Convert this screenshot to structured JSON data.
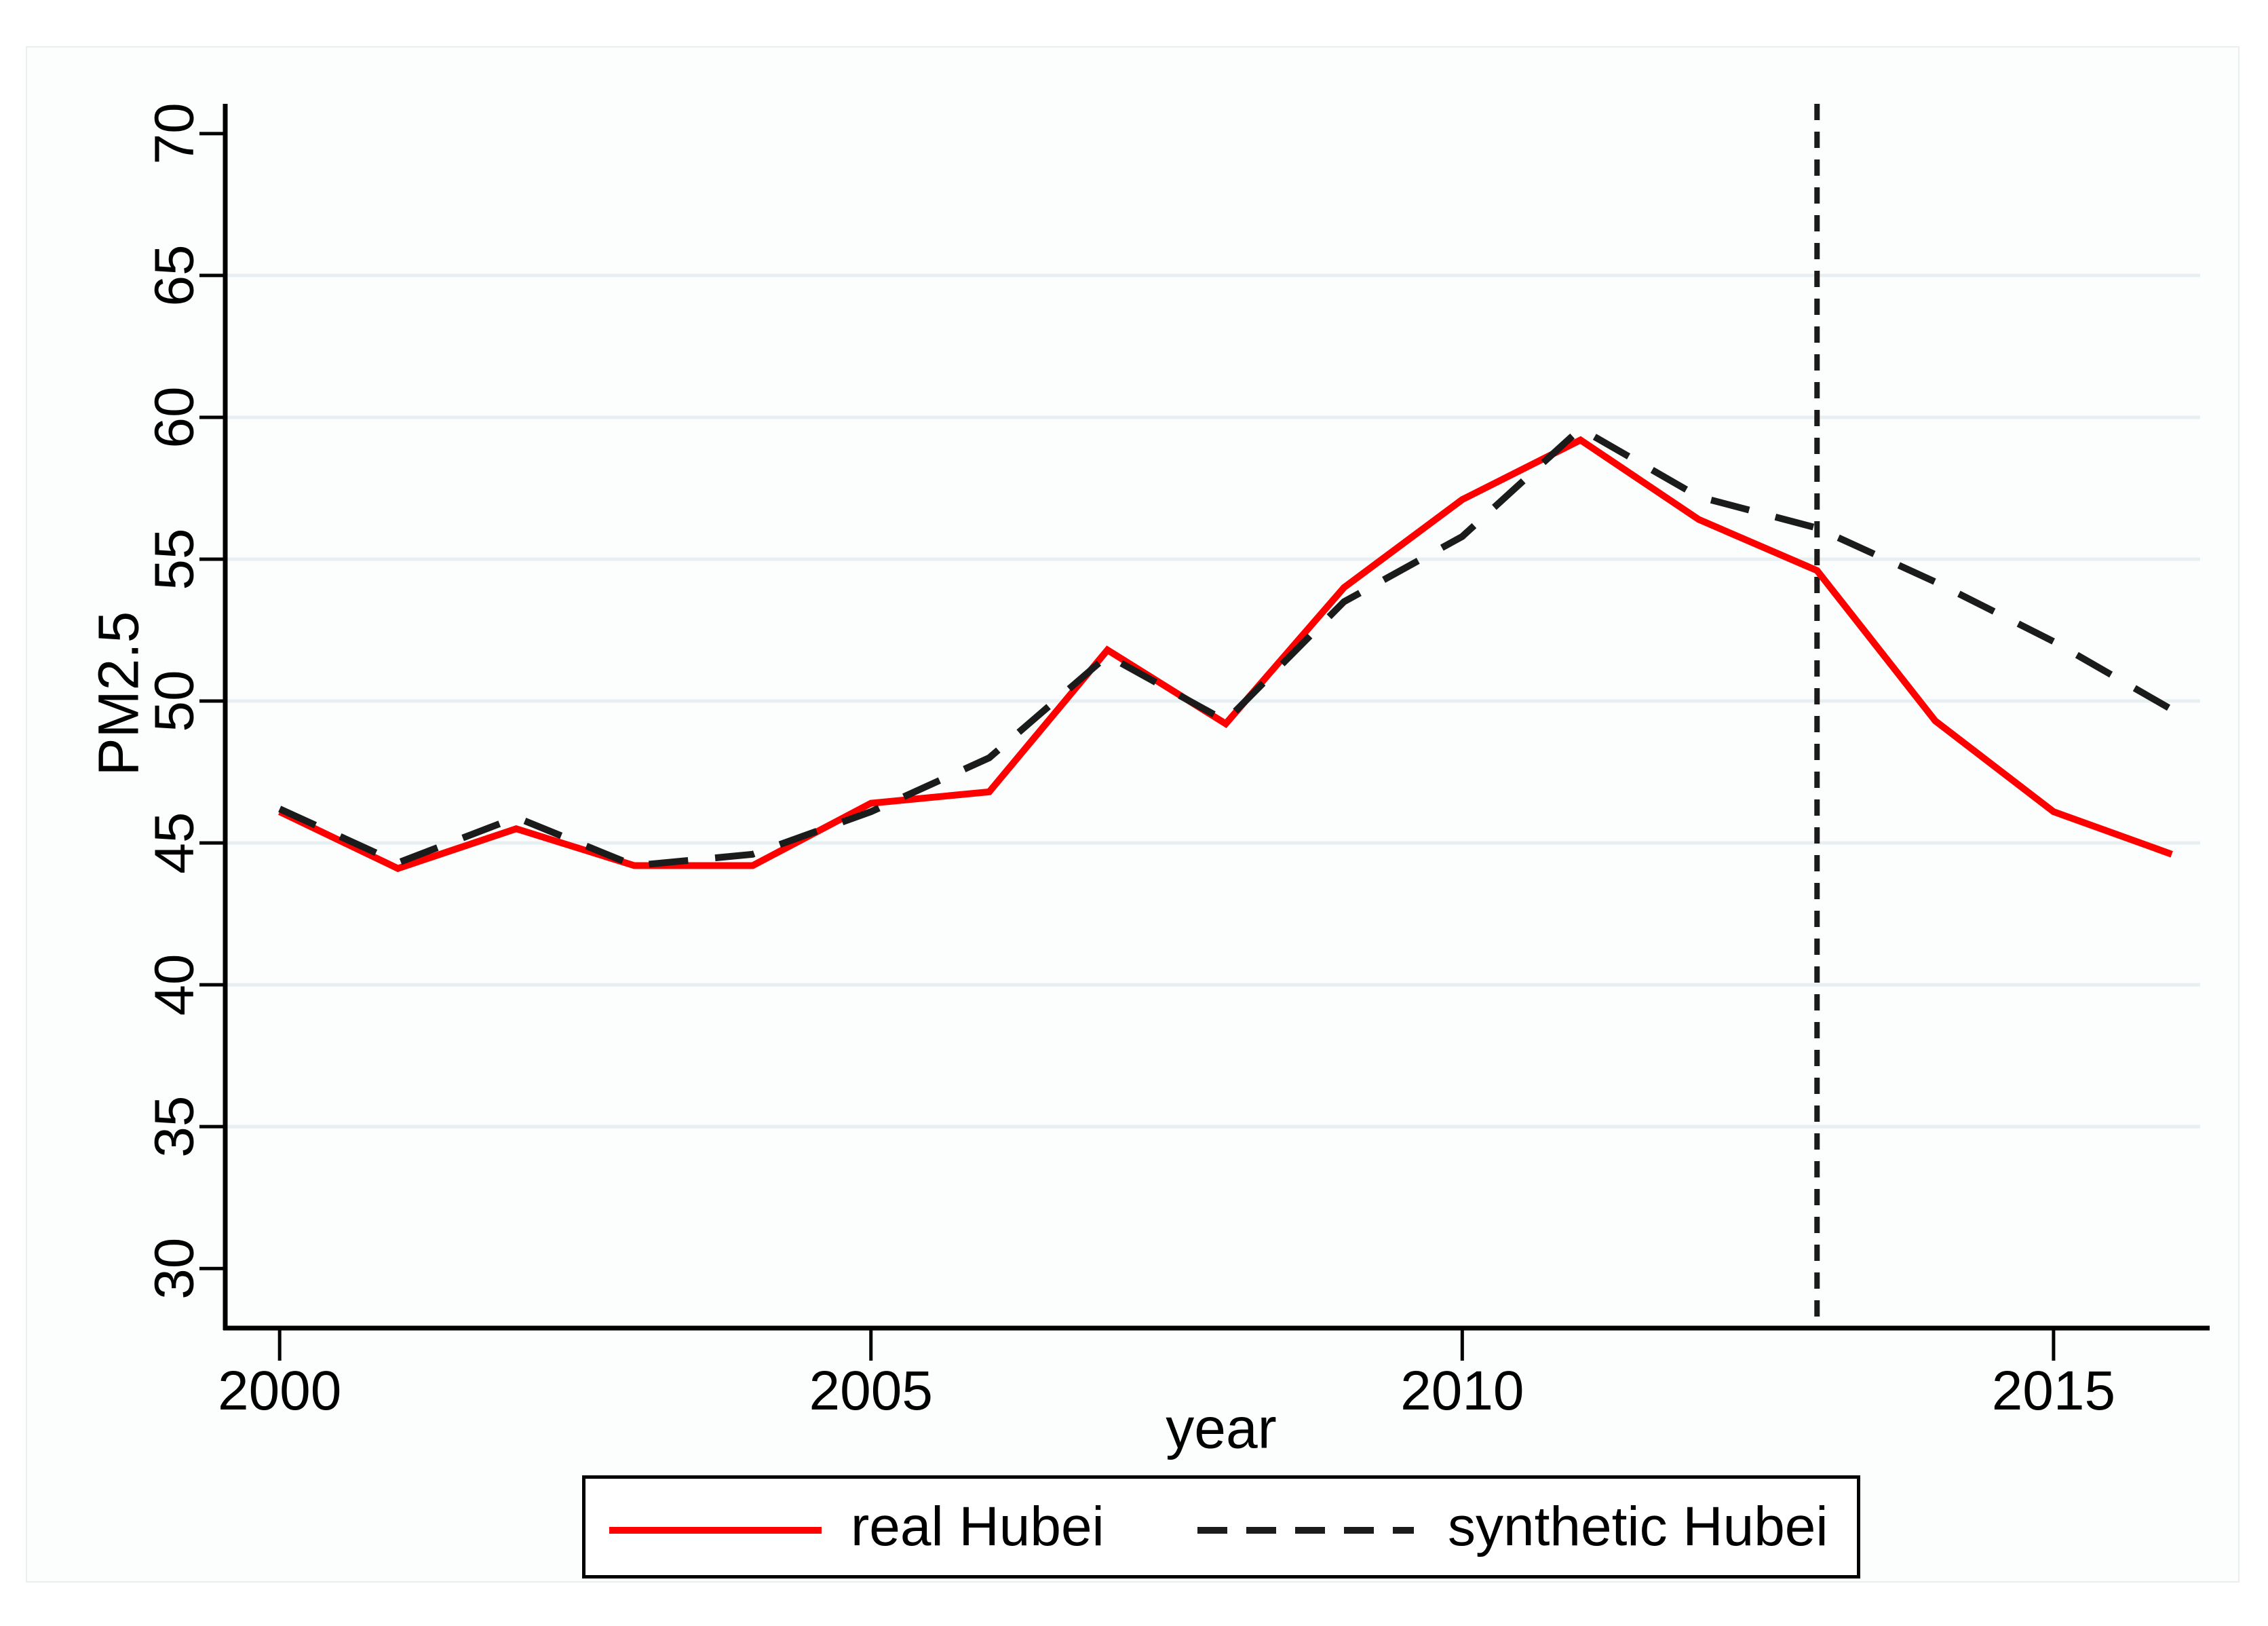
{
  "chart_data": {
    "type": "line",
    "title": "",
    "xlabel": "year",
    "ylabel": "PM2.5",
    "x": [
      2000,
      2001,
      2002,
      2003,
      2004,
      2005,
      2006,
      2007,
      2008,
      2009,
      2010,
      2011,
      2012,
      2013,
      2014,
      2015,
      2016
    ],
    "series": [
      {
        "name": "real Hubei",
        "color": "#ff0000",
        "line_style": "solid",
        "values": [
          46.1,
          44.1,
          45.5,
          44.2,
          44.2,
          46.4,
          46.8,
          51.8,
          49.2,
          54.0,
          57.1,
          59.2,
          56.4,
          54.6,
          49.3,
          46.1,
          44.6
        ]
      },
      {
        "name": "synthetic Hubei",
        "color": "#1b1b1b",
        "line_style": "dashed",
        "values": [
          46.2,
          44.3,
          45.9,
          44.2,
          44.6,
          46.1,
          48.0,
          51.6,
          49.3,
          53.5,
          55.8,
          59.6,
          57.2,
          56.1,
          54.2,
          52.1,
          49.7
        ]
      }
    ],
    "y_ticks": [
      70,
      65,
      60,
      55,
      50,
      45,
      40,
      35,
      30
    ],
    "x_ticks": [
      2000,
      2005,
      2010,
      2015
    ],
    "gridline_values": [
      65,
      60,
      55,
      50,
      45,
      40,
      35
    ],
    "grid": true,
    "ylim": [
      27.9,
      71.05
    ],
    "xlim": [
      1999.54,
      2016.32
    ],
    "vline": {
      "x": 2013,
      "style": "dotted",
      "color": "#1b1b1b"
    },
    "legend_position": "bottom"
  },
  "colors": {
    "real_line": "#ff0000",
    "synthetic_line": "#1b1b1b",
    "gridline": "#e7eff1",
    "axis": "#000000",
    "plot_background": "#ffffff"
  }
}
